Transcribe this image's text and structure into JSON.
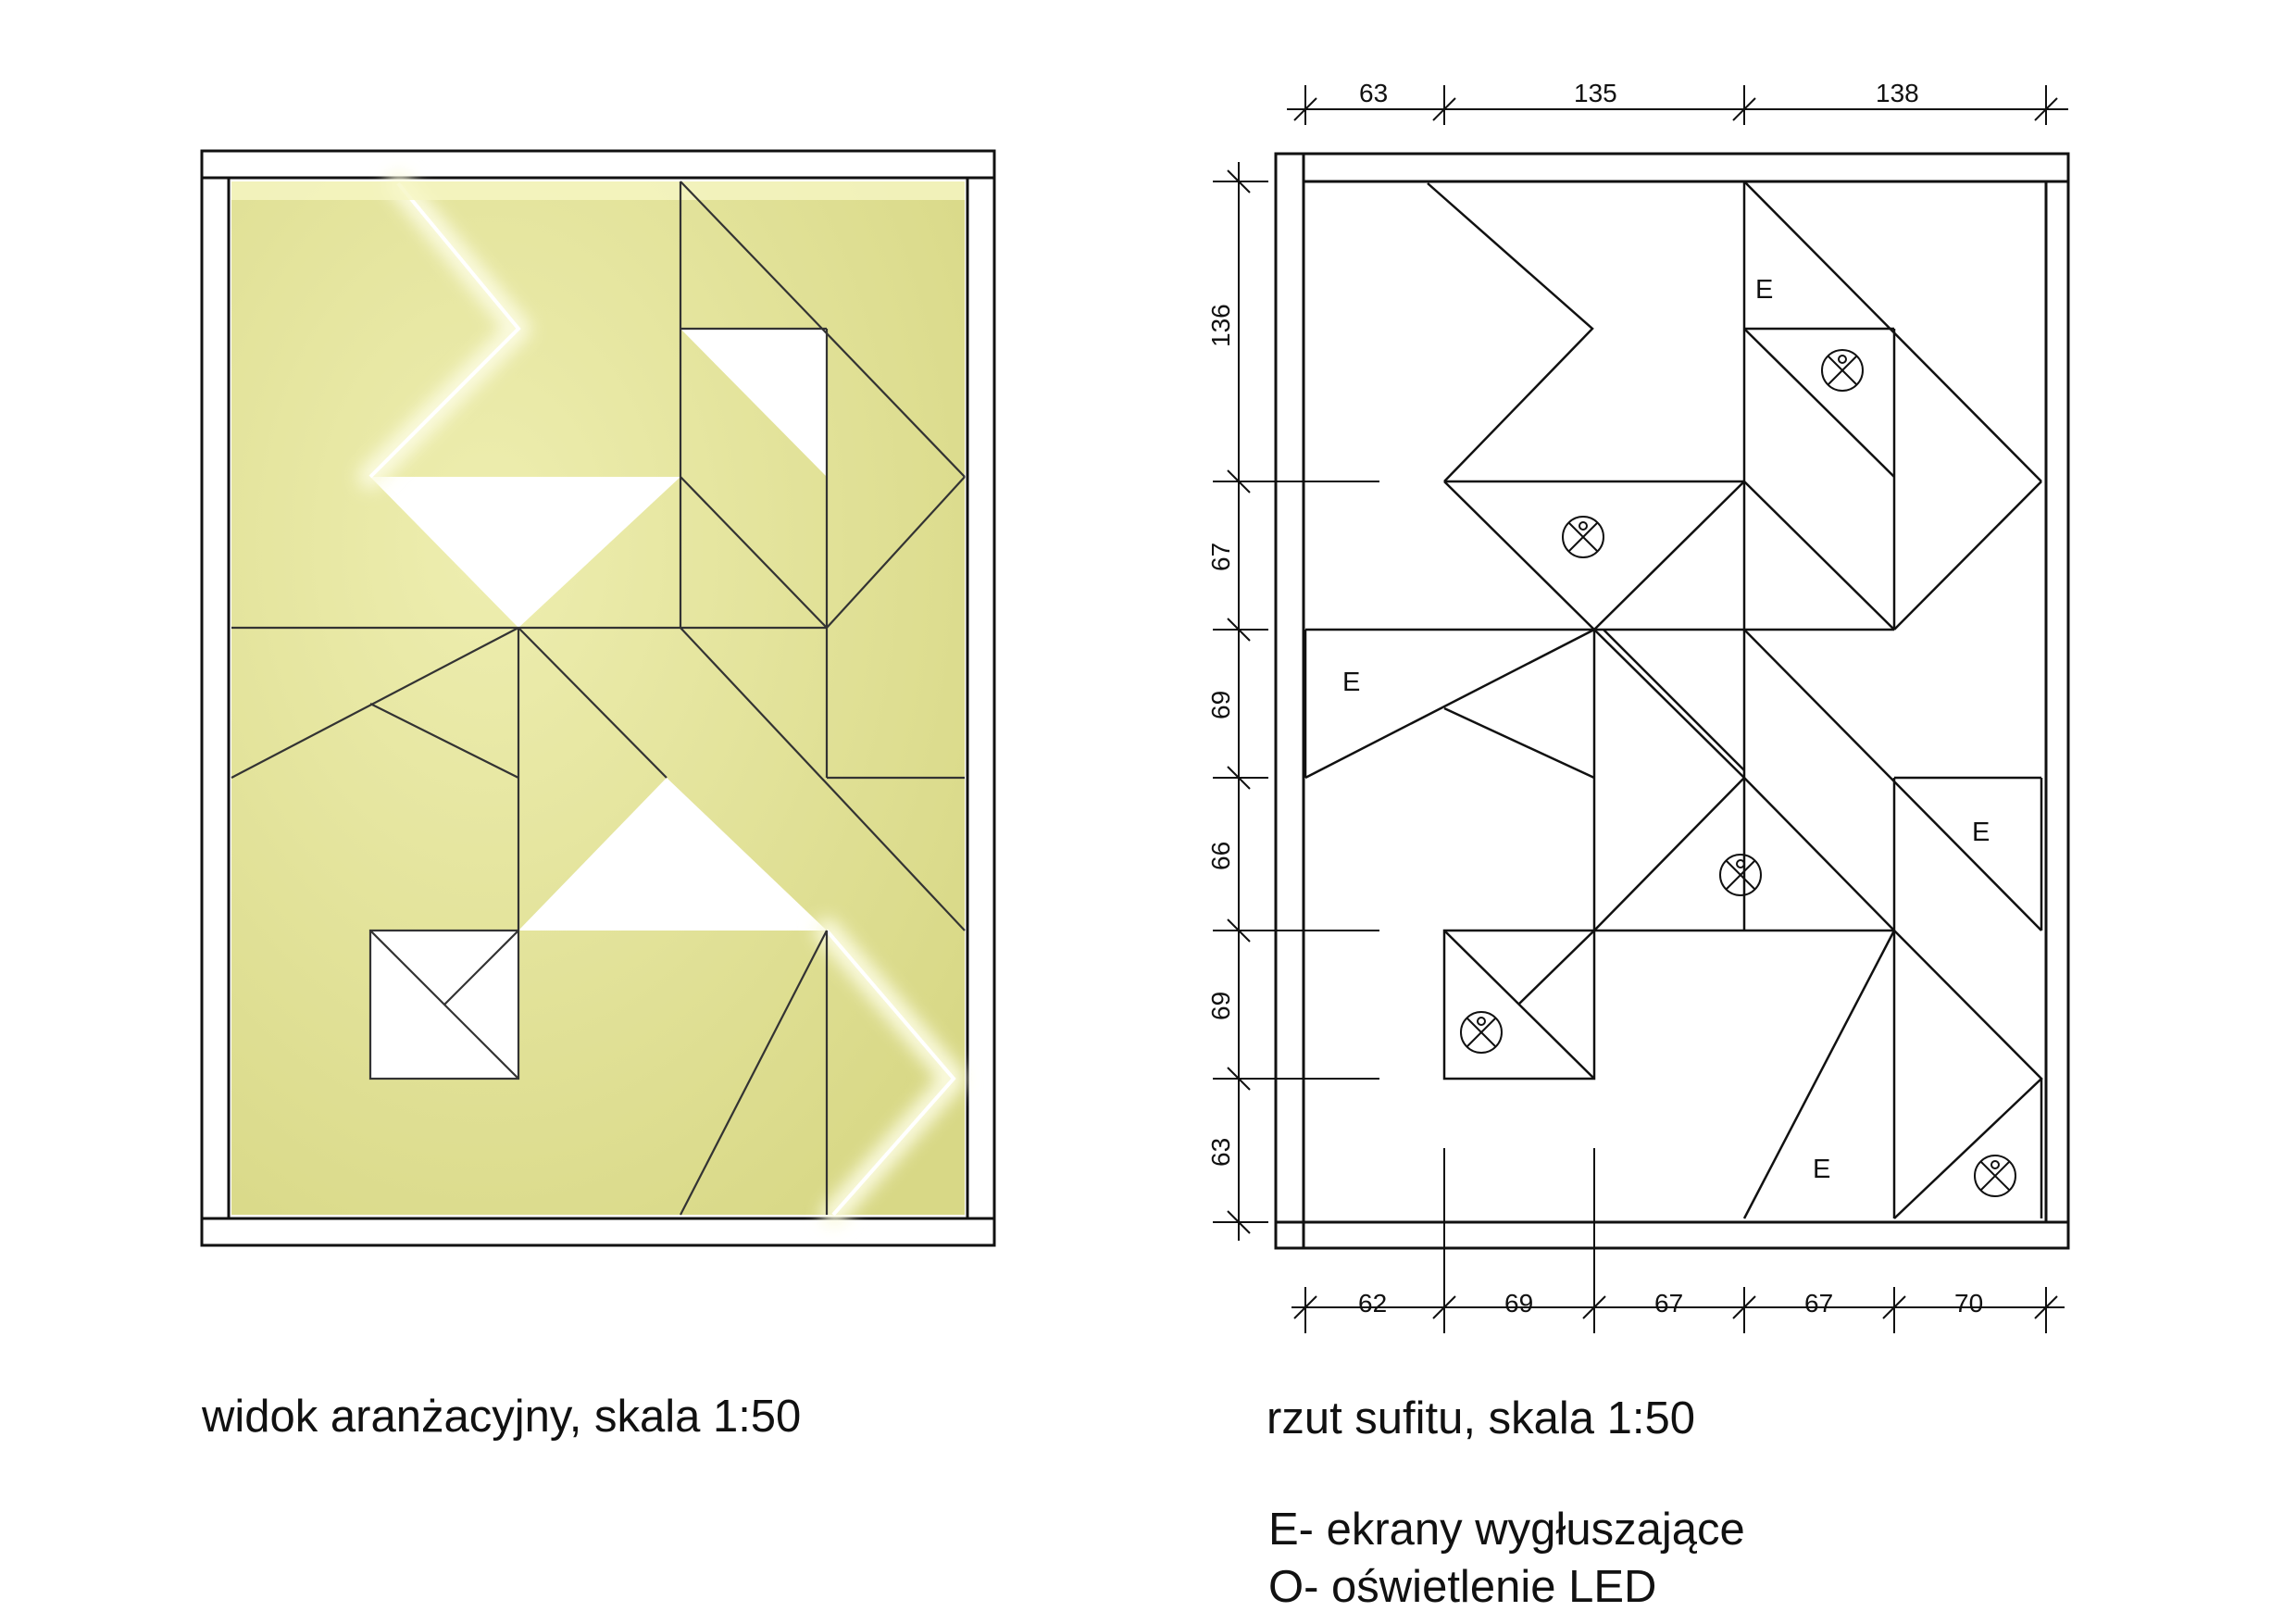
{
  "captions": {
    "left": "widok aranżacyjny, skala 1:50",
    "right": "rzut sufitu, skala 1:50"
  },
  "legend": {
    "e": "E- ekrany wygłuszające",
    "o": "O- oświetlenie LED"
  },
  "plan": {
    "dims_top": [
      "63",
      "135",
      "138"
    ],
    "dims_bottom": [
      "62",
      "69",
      "67",
      "67",
      "70"
    ],
    "dims_left": [
      "136",
      "67",
      "69",
      "66",
      "69",
      "63"
    ],
    "panel_marks": [
      "E",
      "E",
      "E",
      "E"
    ]
  },
  "colors": {
    "panel_fill": "#e4e49a",
    "panel_glow": "#f6f6c4",
    "line": "#111111"
  }
}
